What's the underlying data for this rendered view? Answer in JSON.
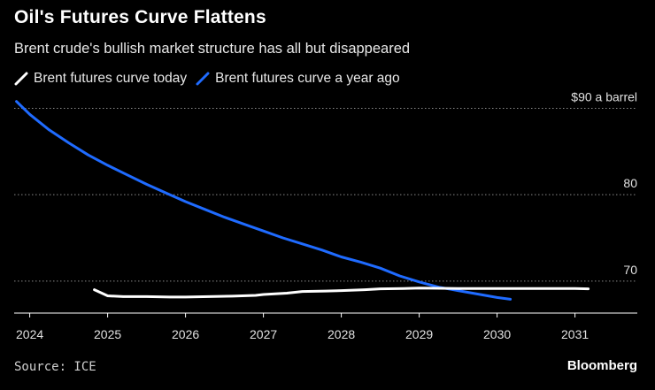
{
  "chart_data": {
    "type": "line",
    "title": "Oil's Futures Curve Flattens",
    "subtitle": "Brent crude's bullish market structure has all but disappeared",
    "xlabel": "",
    "ylabel": "",
    "xlim": [
      2023.8,
      2031.8
    ],
    "ylim": [
      66.3,
      92.3
    ],
    "x_ticks": [
      2024,
      2025,
      2026,
      2027,
      2028,
      2029,
      2030,
      2031
    ],
    "y_ticks": [
      {
        "value": 70,
        "label": "70"
      },
      {
        "value": 80,
        "label": "80"
      },
      {
        "value": 90,
        "label": "$90 a barrel"
      }
    ],
    "legend_position": "top-left",
    "series": [
      {
        "name": "Brent futures curve today",
        "color": "#ffffff",
        "x": [
          2024.83,
          2025.0,
          2025.2,
          2025.5,
          2025.8,
          2026.0,
          2026.3,
          2026.6,
          2026.9,
          2027.0,
          2027.3,
          2027.5,
          2027.8,
          2028.0,
          2028.3,
          2028.5,
          2028.8,
          2029.0,
          2029.5,
          2030.0,
          2030.5,
          2031.0,
          2031.17
        ],
        "y": [
          69.0,
          68.3,
          68.2,
          68.2,
          68.15,
          68.15,
          68.2,
          68.25,
          68.35,
          68.45,
          68.6,
          68.8,
          68.85,
          68.9,
          69.0,
          69.1,
          69.15,
          69.2,
          69.15,
          69.15,
          69.15,
          69.15,
          69.1
        ]
      },
      {
        "name": "Brent futures curve a year ago",
        "color": "#1f6bff",
        "x": [
          2023.83,
          2024.0,
          2024.25,
          2024.5,
          2024.75,
          2025.0,
          2025.25,
          2025.5,
          2025.75,
          2026.0,
          2026.25,
          2026.5,
          2026.75,
          2027.0,
          2027.25,
          2027.5,
          2027.75,
          2028.0,
          2028.25,
          2028.5,
          2028.75,
          2029.0,
          2029.25,
          2029.5,
          2029.75,
          2030.0,
          2030.17
        ],
        "y": [
          90.8,
          89.3,
          87.5,
          86.0,
          84.6,
          83.4,
          82.3,
          81.2,
          80.2,
          79.2,
          78.3,
          77.4,
          76.6,
          75.8,
          75.0,
          74.3,
          73.6,
          72.8,
          72.2,
          71.5,
          70.6,
          69.9,
          69.3,
          68.9,
          68.5,
          68.1,
          67.9
        ]
      }
    ],
    "source": "Source: ICE",
    "brand": "Bloomberg"
  }
}
